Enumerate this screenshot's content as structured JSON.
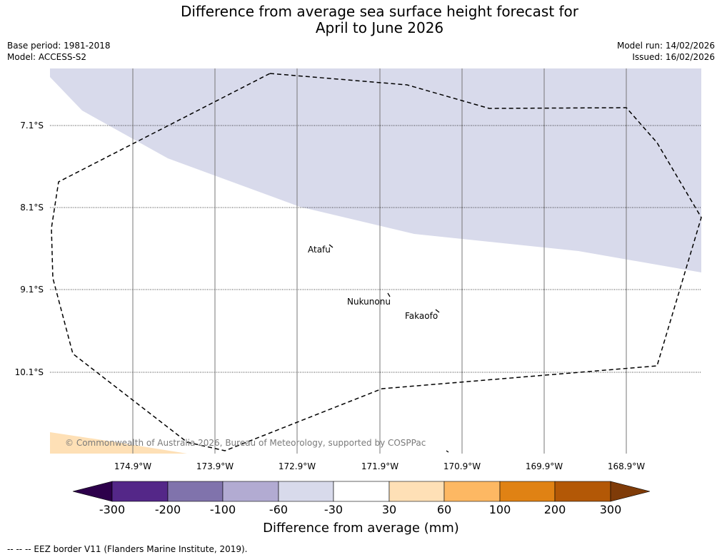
{
  "title": {
    "line1": "Difference from average sea surface height forecast for",
    "line2": "April to June 2026"
  },
  "meta": {
    "base_period": "Base period: 1981-2018",
    "model": "Model: ACCESS-S2",
    "model_run": "Model run: 14/02/2026",
    "issued": "Issued: 16/02/2026"
  },
  "map": {
    "lat_labels": [
      "7.1°S",
      "8.1°S",
      "9.1°S",
      "10.1°S"
    ],
    "lon_labels": [
      "174.9°W",
      "173.9°W",
      "172.9°W",
      "171.9°W",
      "170.9°W",
      "169.9°W",
      "168.9°W"
    ],
    "places": [
      "Atafu",
      "Nukunonu",
      "Fakaofo"
    ],
    "copyright": "© Commonwealth of Australia 2026, Bureau of Meteorology, supported by COSPPac"
  },
  "colorbar": {
    "ticks": [
      "-300",
      "-200",
      "-100",
      "-60",
      "-30",
      "30",
      "60",
      "100",
      "200",
      "300"
    ],
    "colors": [
      "#2d004b",
      "#542788",
      "#8073ac",
      "#b2abd2",
      "#d8daeb",
      "#ffffff",
      "#fee0b6",
      "#fdb863",
      "#e08214",
      "#b35806",
      "#7f3b08"
    ],
    "title": "Difference from average (mm)"
  },
  "legend": {
    "eez": "-- -- -- EEZ border V11 (Flanders Marine Institute, 2019)."
  }
}
